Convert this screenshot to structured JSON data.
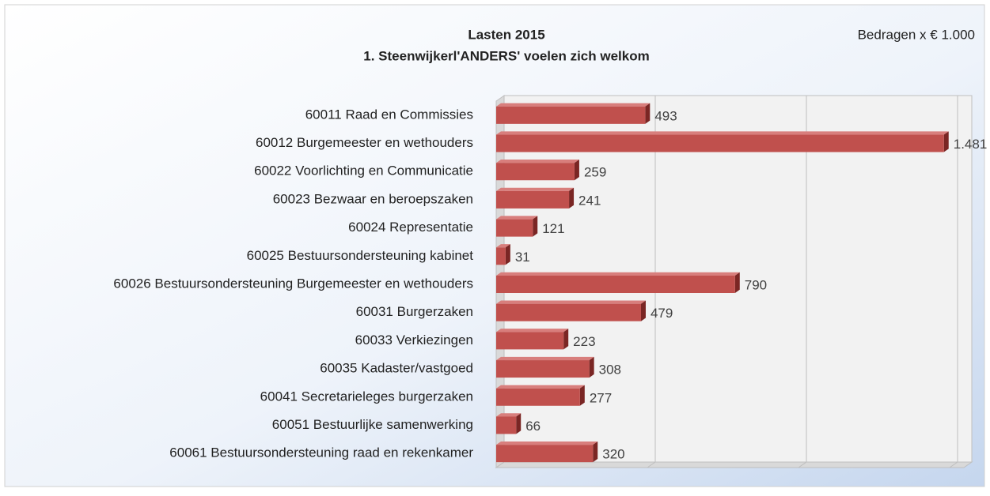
{
  "chart_data": {
    "type": "bar",
    "orientation": "horizontal",
    "title": "Lasten 2015",
    "subtitle": "1. Steenwijkerl'ANDERS' voelen zich welkom",
    "annotation": "Bedragen x € 1.000",
    "categories": [
      "60011 Raad en Commissies",
      "60012 Burgemeester en wethouders",
      "60022 Voorlichting en Communicatie",
      "60023 Bezwaar en beroepszaken",
      "60024 Representatie",
      "60025 Bestuursondersteuning kabinet",
      "60026 Bestuursondersteuning Burgemeester en wethouders",
      "60031 Burgerzaken",
      "60033 Verkiezingen",
      "60035 Kadaster/vastgoed",
      "60041 Secretarieleges burgerzaken",
      "60051 Bestuurlijke samenwerking",
      "60061 Bestuursondersteuning raad en rekenkamer"
    ],
    "values": [
      493,
      1481,
      259,
      241,
      121,
      31,
      790,
      479,
      223,
      308,
      277,
      66,
      320
    ],
    "value_labels": [
      "493",
      "1.481",
      "259",
      "241",
      "121",
      "31",
      "790",
      "479",
      "223",
      "308",
      "277",
      "66",
      "320"
    ],
    "color": "#c0504d",
    "xlim": [
      0,
      1500
    ],
    "xticks": [
      0,
      500,
      1000,
      1500
    ],
    "grid": true
  }
}
